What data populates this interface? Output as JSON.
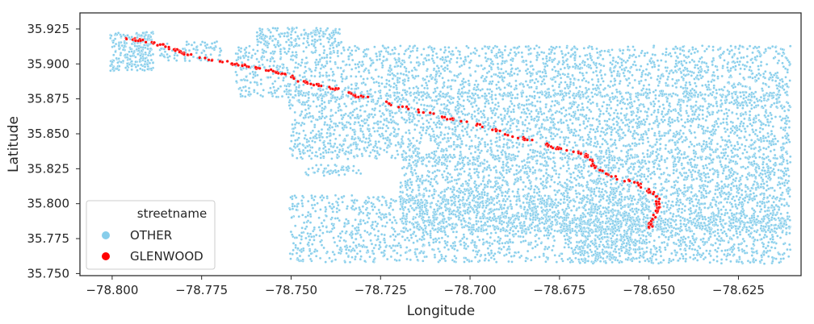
{
  "chart_data": {
    "type": "scatter",
    "title": "",
    "xlabel": "Longitude",
    "ylabel": "Latitude",
    "xlim": [
      -78.809,
      -78.6075
    ],
    "ylim": [
      35.7485,
      35.9365
    ],
    "x_ticks": [
      -78.8,
      -78.775,
      -78.75,
      -78.725,
      -78.7,
      -78.675,
      -78.65,
      -78.625
    ],
    "x_tick_labels": [
      "−78.800",
      "−78.775",
      "−78.750",
      "−78.725",
      "−78.700",
      "−78.675",
      "−78.650",
      "−78.625"
    ],
    "y_ticks": [
      35.75,
      35.775,
      35.8,
      35.825,
      35.85,
      35.875,
      35.9,
      35.925
    ],
    "y_tick_labels": [
      "35.750",
      "35.775",
      "35.800",
      "35.825",
      "35.850",
      "35.875",
      "35.900",
      "35.925"
    ],
    "grid": false,
    "legend": {
      "title": "streetname",
      "placement": "lower-left",
      "entries": [
        {
          "label": "OTHER",
          "color": "#87ceeb"
        },
        {
          "label": "GLENWOOD",
          "color": "#ff0000"
        }
      ]
    },
    "series": [
      {
        "name": "OTHER",
        "color": "#87ceeb",
        "regions": [
          {
            "x": [
              -78.8005,
              -78.7885
            ],
            "y": [
              35.895,
              35.923
            ],
            "n": 260
          },
          {
            "x": [
              -78.7875,
              -78.7695
            ],
            "y": [
              35.902,
              35.916
            ],
            "n": 90
          },
          {
            "x": [
              -78.7595,
              -78.7355
            ],
            "y": [
              35.913,
              35.926
            ],
            "n": 200
          },
          {
            "x": [
              -78.7655,
              -78.6105
            ],
            "y": [
              35.876,
              35.913
            ],
            "n": 1900
          },
          {
            "x": [
              -78.7505,
              -78.6105
            ],
            "y": [
              35.832,
              35.88
            ],
            "n": 2700
          },
          {
            "x": [
              -78.7195,
              -78.6105
            ],
            "y": [
              35.78,
              35.834
            ],
            "n": 2700
          },
          {
            "x": [
              -78.7465,
              -78.7305
            ],
            "y": [
              35.82,
              35.828
            ],
            "n": 50
          },
          {
            "x": [
              -78.7505,
              -78.6505
            ],
            "y": [
              35.758,
              35.806
            ],
            "n": 1400
          },
          {
            "x": [
              -78.6705,
              -78.6105
            ],
            "y": [
              35.757,
              35.79
            ],
            "n": 800
          }
        ]
      },
      {
        "name": "GLENWOOD",
        "color": "#ff0000",
        "path": [
          [
            -78.7985,
            35.921
          ],
          [
            -78.7955,
            35.918
          ],
          [
            -78.7895,
            35.916
          ],
          [
            -78.7845,
            35.912
          ],
          [
            -78.7815,
            35.909
          ],
          [
            -78.7775,
            35.906
          ],
          [
            -78.7725,
            35.903
          ],
          [
            -78.7675,
            35.901
          ],
          [
            -78.7625,
            35.899
          ],
          [
            -78.7565,
            35.896
          ],
          [
            -78.7525,
            35.893
          ],
          [
            -78.7485,
            35.889
          ],
          [
            -78.7445,
            35.886
          ],
          [
            -78.7405,
            35.884
          ],
          [
            -78.7365,
            35.881
          ],
          [
            -78.7315,
            35.877
          ],
          [
            -78.7255,
            35.874
          ],
          [
            -78.7205,
            35.87
          ],
          [
            -78.7155,
            35.867
          ],
          [
            -78.7105,
            35.864
          ],
          [
            -78.7045,
            35.86
          ],
          [
            -78.6985,
            35.857
          ],
          [
            -78.6935,
            35.853
          ],
          [
            -78.6875,
            35.848
          ],
          [
            -78.6825,
            35.845
          ],
          [
            -78.6775,
            35.841
          ],
          [
            -78.6735,
            35.839
          ],
          [
            -78.6685,
            35.836
          ],
          [
            -78.6665,
            35.832
          ],
          [
            -78.6655,
            35.827
          ],
          [
            -78.6625,
            35.822
          ],
          [
            -78.6585,
            35.818
          ],
          [
            -78.6545,
            35.816
          ],
          [
            -78.6515,
            35.812
          ],
          [
            -78.6495,
            35.808
          ],
          [
            -78.6475,
            35.803
          ],
          [
            -78.6475,
            35.797
          ],
          [
            -78.6485,
            35.791
          ],
          [
            -78.6495,
            35.786
          ],
          [
            -78.6495,
            35.782
          ]
        ],
        "n": 260
      }
    ]
  }
}
